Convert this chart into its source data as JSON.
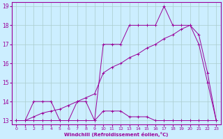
{
  "xlabel": "Windchill (Refroidissement éolien,°C)",
  "bg_color": "#cceeff",
  "line_color": "#990099",
  "grid_color": "#aacccc",
  "xlim": [
    -0.5,
    23.5
  ],
  "ylim": [
    12.8,
    19.2
  ],
  "yticks": [
    13,
    14,
    15,
    16,
    17,
    18,
    19
  ],
  "xticks": [
    0,
    1,
    2,
    3,
    4,
    5,
    6,
    7,
    8,
    9,
    10,
    11,
    12,
    13,
    14,
    15,
    16,
    17,
    18,
    19,
    20,
    21,
    22,
    23
  ],
  "line1_x": [
    0,
    1,
    2,
    3,
    4,
    5,
    6,
    7,
    8,
    9,
    10,
    11,
    12,
    13,
    14,
    15,
    16,
    17,
    18,
    19,
    20,
    21,
    22,
    23
  ],
  "line1_y": [
    13,
    13,
    13,
    13,
    13,
    13,
    13,
    13,
    13,
    13,
    13.5,
    13.5,
    13.5,
    13.2,
    13.2,
    13.2,
    13,
    13,
    13,
    13,
    13,
    13,
    13,
    13
  ],
  "line2_x": [
    0,
    1,
    2,
    3,
    4,
    5,
    6,
    7,
    8,
    9,
    10,
    11,
    12,
    13,
    14,
    15,
    16,
    17,
    18,
    19,
    20,
    21,
    22,
    23
  ],
  "line2_y": [
    13,
    13,
    14,
    14,
    14,
    13,
    13,
    14,
    14,
    13,
    17,
    17,
    17,
    18,
    18,
    18,
    18,
    19,
    18,
    18,
    18,
    17,
    15,
    13
  ],
  "line3_x": [
    0,
    1,
    2,
    3,
    4,
    5,
    6,
    7,
    8,
    9,
    10,
    11,
    12,
    13,
    14,
    15,
    16,
    17,
    18,
    19,
    20,
    21,
    22,
    23
  ],
  "line3_y": [
    13,
    13,
    13.2,
    13.4,
    13.5,
    13.6,
    13.8,
    14.0,
    14.2,
    14.4,
    15.5,
    15.8,
    16.0,
    16.3,
    16.5,
    16.8,
    17.0,
    17.3,
    17.5,
    17.8,
    18.0,
    17.5,
    15.5,
    13
  ]
}
